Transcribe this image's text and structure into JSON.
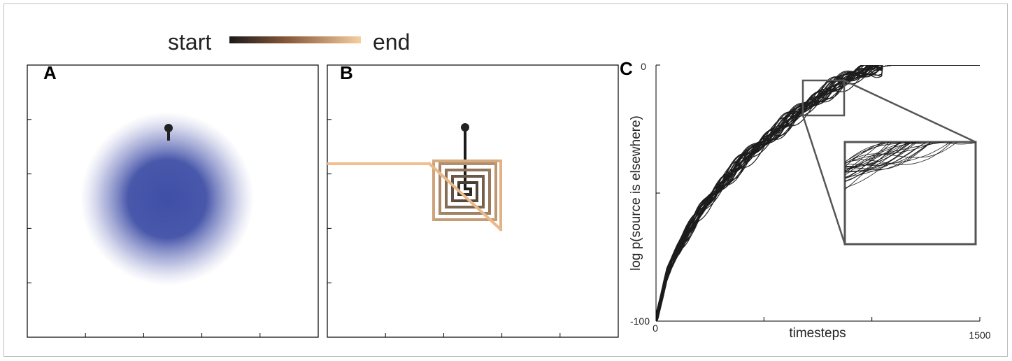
{
  "legend": {
    "start_label": "start",
    "end_label": "end",
    "gradient_colors": [
      "#1a1a1a",
      "#8a5a3a",
      "#f6cfa0"
    ]
  },
  "panel_a": {
    "letter": "A",
    "blob_color": "#3f4fa6",
    "marker_color": "#222222"
  },
  "panel_b": {
    "letter": "B",
    "start_color": "#1a1a1a",
    "end_color": "#f2c08f"
  },
  "panel_c": {
    "letter": "C"
  },
  "chart_data": {
    "type": "line",
    "title": "",
    "xlabel": "timesteps",
    "ylabel": "log p(source is elsewhere)",
    "xlim": [
      0,
      1500
    ],
    "ylim": [
      -100,
      0
    ],
    "x_ticks": [
      "0",
      "1500"
    ],
    "y_ticks": [
      "-100",
      "0"
    ],
    "grid": false,
    "legend": "none",
    "n_traces": 30,
    "line_color": "#1c1c1c",
    "series_mean": {
      "x": [
        0,
        50,
        100,
        200,
        300,
        400,
        500,
        600,
        700,
        800,
        900,
        1000,
        1100,
        1200,
        1300,
        1400,
        1500
      ],
      "y": [
        -100,
        -82,
        -72,
        -58,
        -47,
        -38,
        -30,
        -23,
        -16,
        -10,
        -5,
        -1,
        0,
        0,
        0,
        0,
        0
      ]
    },
    "inset": {
      "zoom_region_x": [
        700,
        880
      ],
      "zoom_region_y": [
        -30,
        -10
      ]
    }
  }
}
